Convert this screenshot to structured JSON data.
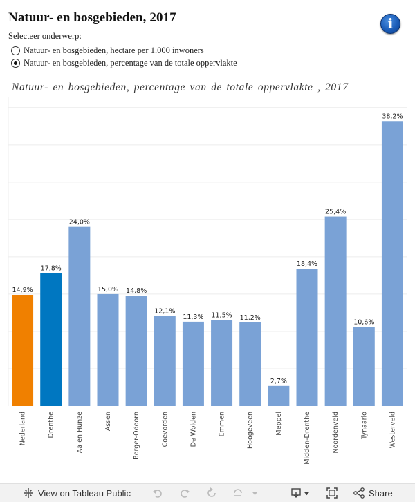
{
  "header": {
    "title": "Natuur- en bosgebieden, 2017",
    "select_label": "Selecteer onderwerp:",
    "options": [
      {
        "label": "Natuur- en bosgebieden, hectare per 1.000 inwoners",
        "selected": false
      },
      {
        "label": "Natuur- en bosgebieden, percentage van de totale oppervlakte",
        "selected": true
      }
    ]
  },
  "colors": {
    "nederland": "#f08000",
    "drenthe": "#0077c1",
    "gemeente": "#7aa2d6",
    "grid": "#ececec"
  },
  "chart_data": {
    "type": "bar",
    "title": "Natuur- en bosgebieden, percentage van de totale oppervlakte , 2017",
    "categories": [
      "Nederland",
      "Drenthe",
      "Aa en Hunze",
      "Assen",
      "Borger-Odoorn",
      "Coevorden",
      "De Wolden",
      "Emmen",
      "Hoogeveen",
      "Meppel",
      "Midden-Drenthe",
      "Noordenveld",
      "Tynaarlo",
      "Westerveld"
    ],
    "values": [
      14.9,
      17.8,
      24.0,
      15.0,
      14.8,
      12.1,
      11.3,
      11.5,
      11.2,
      2.7,
      18.4,
      25.4,
      10.6,
      38.2
    ],
    "value_labels": [
      "14,9%",
      "17,8%",
      "24,0%",
      "15,0%",
      "14,8%",
      "12,1%",
      "11,3%",
      "11,5%",
      "11,2%",
      "2,7%",
      "18,4%",
      "25,4%",
      "10,6%",
      "38,2%"
    ],
    "xlabel": "",
    "ylabel": "",
    "ylim": [
      0,
      41
    ],
    "grid": true
  },
  "footer": {
    "view_label": "View on Tableau Public",
    "share_label": "Share"
  }
}
